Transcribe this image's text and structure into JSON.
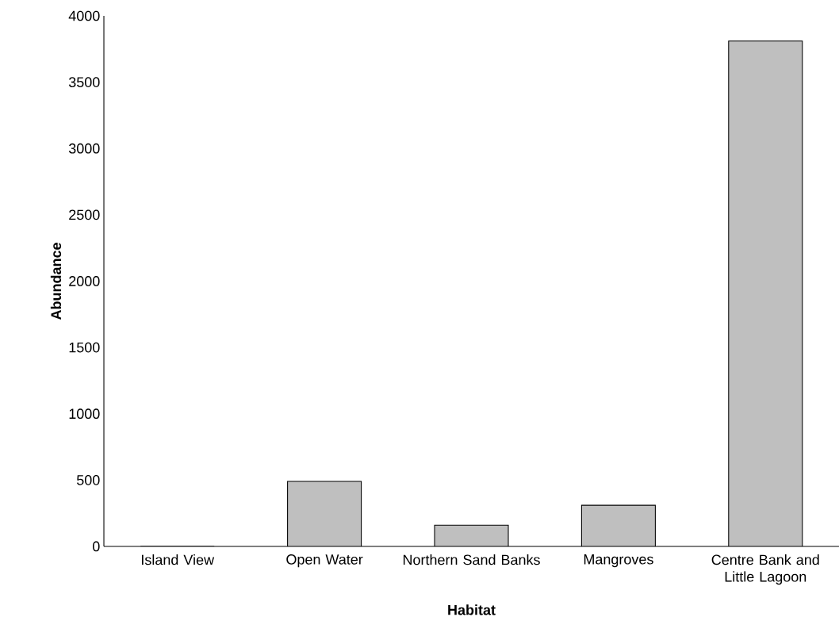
{
  "chart_data": {
    "type": "bar",
    "xlabel": "Habitat",
    "ylabel": "Abundance",
    "categories": [
      "Island View",
      "Open Water",
      "Northern Sand Banks",
      "Mangroves",
      "Centre Bank and Little Lagoon"
    ],
    "values": [
      0,
      490,
      160,
      310,
      3810
    ],
    "color": "#bfbfbf",
    "ylim": [
      0,
      4000
    ],
    "yticks": [
      0,
      500,
      1000,
      1500,
      2000,
      2500,
      3000,
      3500,
      4000
    ]
  }
}
